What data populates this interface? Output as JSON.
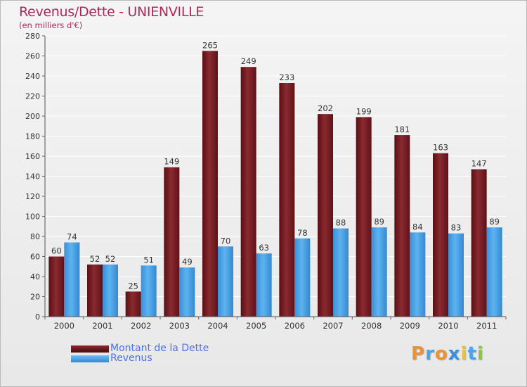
{
  "header": {
    "title": "Revenus/Dette - UNIENVILLE",
    "subtitle": "(en milliers d'€)"
  },
  "colors": {
    "dette": "#7a1f25",
    "revenus": "#4aa3e6",
    "title": "#b0285a",
    "legend_text": "#4d6ff0"
  },
  "legend": {
    "dette_label": "Montant de la Dette",
    "revenus_label": "Revenus"
  },
  "logo": {
    "letters": [
      "P",
      "r",
      "o",
      "x",
      "i",
      "t",
      "i"
    ],
    "colors": [
      "#e8923a",
      "#4aa3e6",
      "#e8923a",
      "#3a8fd8",
      "#e8c23a",
      "#4aa3e6",
      "#8cc63f"
    ]
  },
  "chart_data": {
    "type": "bar",
    "title": "Revenus/Dette - UNIENVILLE",
    "ylabel": "(en milliers d'€)",
    "xlabel": "",
    "ylim": [
      0,
      280
    ],
    "ytick_step": 20,
    "grid": true,
    "legend_position": "bottom-left",
    "categories": [
      "2000",
      "2001",
      "2002",
      "2003",
      "2004",
      "2005",
      "2006",
      "2007",
      "2008",
      "2009",
      "2010",
      "2011"
    ],
    "series": [
      {
        "name": "Montant de la Dette",
        "values": [
          60,
          52,
          25,
          149,
          265,
          249,
          233,
          202,
          199,
          181,
          163,
          147
        ]
      },
      {
        "name": "Revenus",
        "values": [
          74,
          52,
          51,
          49,
          70,
          63,
          78,
          88,
          89,
          84,
          83,
          89
        ]
      }
    ]
  }
}
